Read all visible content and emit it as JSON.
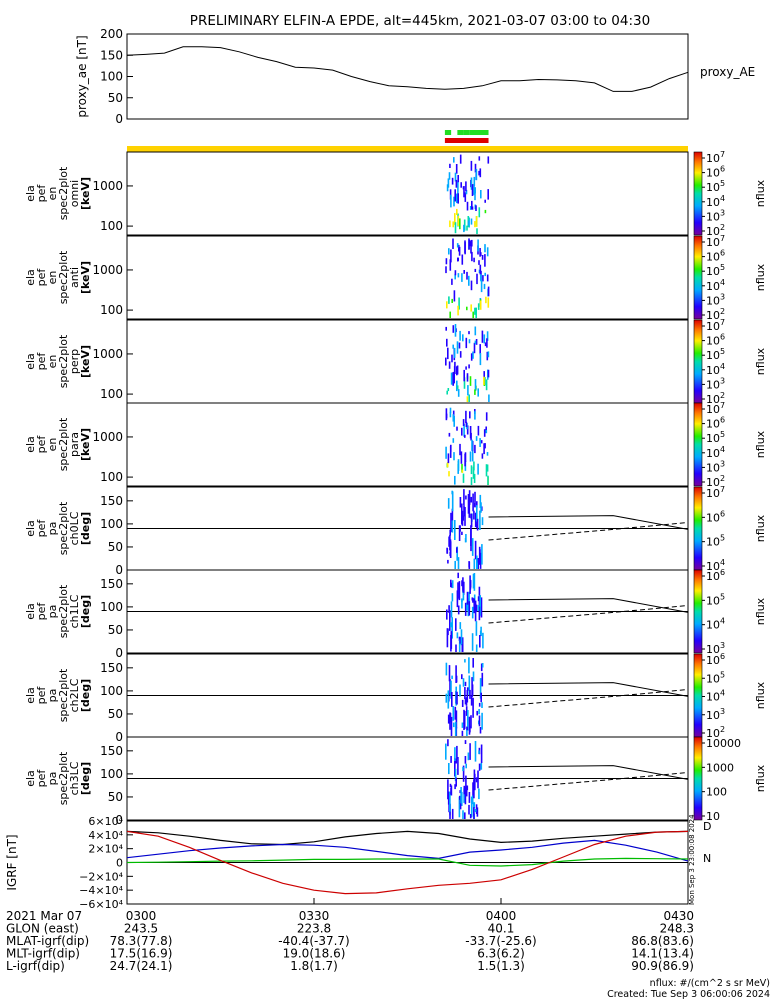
{
  "title": "PRELIMINARY ELFIN-A EPDE, alt=445km, 2021-03-07 03:00 to 04:30",
  "colors": {
    "frame": "#000000",
    "orbit_bar": "#ffd200",
    "science_green": "#22dd22",
    "science_red": "#dd0000",
    "bx": "#0000cc",
    "by": "#00bb00",
    "bz": "#cc0000",
    "btot": "#000000"
  },
  "chart_data": [
    {
      "type": "line",
      "panel": "proxy_ae",
      "ylabel": "proxy_ae [nT]",
      "series_label": "proxy_AE",
      "ylim": [
        0,
        200
      ],
      "yticks": [
        "200",
        "150",
        "100",
        "50",
        "0"
      ],
      "x": [
        "03:00",
        "03:03",
        "03:06",
        "03:09",
        "03:12",
        "03:15",
        "03:18",
        "03:21",
        "03:24",
        "03:27",
        "03:30",
        "03:33",
        "03:36",
        "03:39",
        "03:42",
        "03:45",
        "03:48",
        "03:51",
        "03:54",
        "03:57",
        "04:00",
        "04:03",
        "04:06",
        "04:09",
        "04:12",
        "04:15",
        "04:18",
        "04:21",
        "04:24",
        "04:27",
        "04:30"
      ],
      "values": [
        150,
        152,
        155,
        170,
        170,
        168,
        158,
        145,
        135,
        122,
        120,
        115,
        100,
        88,
        78,
        76,
        72,
        70,
        72,
        78,
        90,
        90,
        93,
        92,
        90,
        85,
        65,
        65,
        75,
        95,
        110
      ]
    },
    {
      "type": "bar",
      "panel": "science_zone_bars",
      "segments": [
        {
          "color": "green",
          "start": "03:51",
          "end": "03:52"
        },
        {
          "color": "green",
          "start": "03:53",
          "end": "03:54"
        },
        {
          "color": "green",
          "start": "03:54",
          "end": "03:55"
        },
        {
          "color": "green",
          "start": "03:55",
          "end": "03:58"
        },
        {
          "color": "red",
          "start": "03:51",
          "end": "03:58"
        }
      ]
    },
    {
      "type": "heatmap",
      "panel": "ela pef en spec2plot omni",
      "ylabel_lines": [
        "ela",
        "pef",
        "en",
        "spec2plot",
        "omni",
        "[keV]"
      ],
      "ylog": true,
      "yticks": [
        "1000",
        "100"
      ],
      "zlabel": "nflux",
      "ztick_exponents": [
        "7",
        "6",
        "5",
        "4",
        "3",
        "2"
      ],
      "active_interval": [
        "03:51",
        "03:58"
      ]
    },
    {
      "type": "heatmap",
      "panel": "ela pef en spec2plot anti",
      "ylabel_lines": [
        "ela",
        "pef",
        "en",
        "spec2plot",
        "anti",
        "[keV]"
      ],
      "ylog": true,
      "yticks": [
        "1000",
        "100"
      ],
      "zlabel": "nflux",
      "ztick_exponents": [
        "7",
        "6",
        "5",
        "4",
        "3",
        "2"
      ],
      "active_interval": [
        "03:51",
        "03:58"
      ]
    },
    {
      "type": "heatmap",
      "panel": "ela pef en spec2plot perp",
      "ylabel_lines": [
        "ela",
        "pef",
        "en",
        "spec2plot",
        "perp",
        "[keV]"
      ],
      "ylog": true,
      "yticks": [
        "1000",
        "100"
      ],
      "zlabel": "nflux",
      "ztick_exponents": [
        "7",
        "6",
        "5",
        "4",
        "3",
        "2"
      ],
      "active_interval": [
        "03:51",
        "03:58"
      ]
    },
    {
      "type": "heatmap",
      "panel": "ela pef en spec2plot para",
      "ylabel_lines": [
        "ela",
        "pef",
        "en",
        "spec2plot",
        "para",
        "[keV]"
      ],
      "ylog": true,
      "yticks": [
        "1000",
        "100"
      ],
      "zlabel": "nflux",
      "ztick_exponents": [
        "7",
        "6",
        "5",
        "4",
        "3",
        "2"
      ],
      "active_interval": [
        "03:51",
        "03:58"
      ]
    },
    {
      "type": "heatmap",
      "panel": "ela pef pa spec2plot ch0LC",
      "ylabel_lines": [
        "ela",
        "pef",
        "pa",
        "spec2plot",
        "ch0LC",
        "[deg]"
      ],
      "ylim": [
        0,
        180
      ],
      "yticks": [
        "150",
        "100",
        "50",
        "0"
      ],
      "zlabel": "nflux",
      "ztick_exponents": [
        "7",
        "6",
        "5",
        "4"
      ],
      "active_interval": [
        "03:51",
        "03:57"
      ]
    },
    {
      "type": "heatmap",
      "panel": "ela pef pa spec2plot ch1LC",
      "ylabel_lines": [
        "ela",
        "pef",
        "pa",
        "spec2plot",
        "ch1LC",
        "[deg]"
      ],
      "ylim": [
        0,
        180
      ],
      "yticks": [
        "150",
        "100",
        "50",
        "0"
      ],
      "zlabel": "nflux",
      "ztick_exponents": [
        "6",
        "5",
        "4",
        "3"
      ],
      "active_interval": [
        "03:51",
        "03:57"
      ]
    },
    {
      "type": "heatmap",
      "panel": "ela pef pa spec2plot ch2LC",
      "ylabel_lines": [
        "ela",
        "pef",
        "pa",
        "spec2plot",
        "ch2LC",
        "[deg]"
      ],
      "ylim": [
        0,
        180
      ],
      "yticks": [
        "150",
        "100",
        "50",
        "0"
      ],
      "zlabel": "nflux",
      "ztick_exponents": [
        "6",
        "5",
        "4",
        "3",
        "2"
      ],
      "active_interval": [
        "03:51",
        "03:57"
      ]
    },
    {
      "type": "heatmap",
      "panel": "ela pef pa spec2plot ch3LC",
      "ylabel_lines": [
        "ela",
        "pef",
        "pa",
        "spec2plot",
        "ch3LC",
        "[deg]"
      ],
      "ylim": [
        0,
        180
      ],
      "yticks": [
        "150",
        "100",
        "50",
        "0"
      ],
      "zlabel": "nflux",
      "ztick_labels": [
        "10000",
        "1000",
        "100",
        "10"
      ],
      "active_interval": [
        "03:51",
        "03:57"
      ]
    },
    {
      "type": "line",
      "panel": "IGRF",
      "ylabel": "IGRF [nT]",
      "ylim": [
        -60000,
        60000
      ],
      "yticks": [
        "6×10⁴",
        "4×10⁴",
        "2×10⁴",
        "0",
        "−2×10⁴",
        "−4×10⁴",
        "−6×10⁴"
      ],
      "side_labels": [
        "D",
        "N"
      ],
      "x": [
        "03:00",
        "03:05",
        "03:10",
        "03:15",
        "03:20",
        "03:25",
        "03:30",
        "03:35",
        "03:40",
        "03:45",
        "03:50",
        "03:55",
        "04:00",
        "04:05",
        "04:10",
        "04:15",
        "04:20",
        "04:25",
        "04:30"
      ],
      "series": [
        {
          "name": "|B|",
          "values": [
            45000,
            43000,
            38000,
            32000,
            27000,
            26000,
            30000,
            37000,
            42000,
            45000,
            42000,
            34000,
            29000,
            31000,
            35000,
            38000,
            41000,
            44000,
            45000
          ]
        },
        {
          "name": "Bx",
          "values": [
            7000,
            12000,
            17000,
            21000,
            24000,
            26000,
            25000,
            22000,
            16000,
            10000,
            6000,
            15000,
            18000,
            22000,
            28000,
            32000,
            25000,
            15000,
            2000
          ]
        },
        {
          "name": "By",
          "values": [
            0,
            500,
            1200,
            2000,
            2500,
            3500,
            4500,
            4500,
            5000,
            5000,
            5000,
            -4000,
            -5000,
            -3000,
            2000,
            5000,
            6000,
            5500,
            5000
          ]
        },
        {
          "name": "Bz",
          "values": [
            45000,
            38000,
            22000,
            3000,
            -15000,
            -30000,
            -40000,
            -45000,
            -44000,
            -38000,
            -33000,
            -30000,
            -25000,
            -10000,
            8000,
            26000,
            38000,
            44000,
            45000
          ]
        }
      ]
    }
  ],
  "side_vertical_text": "Mon Sep  3 23:00:08 2024",
  "axis_footer": {
    "rows": [
      {
        "label": "2021 Mar 07",
        "values": [
          "0300",
          "0330",
          "0400",
          "0430"
        ]
      },
      {
        "label": "GLON (east)",
        "values": [
          "243.5",
          "223.8",
          "40.1",
          "248.3"
        ]
      },
      {
        "label": "MLAT-igrf(dip)",
        "values": [
          "78.3(77.8)",
          "-40.4(-37.7)",
          "-33.7(-25.6)",
          "86.8(83.6)"
        ]
      },
      {
        "label": "MLT-igrf(dip)",
        "values": [
          "17.5(16.9)",
          "19.0(18.6)",
          "6.3(6.2)",
          "14.1(13.4)"
        ]
      },
      {
        "label": "L-igrf(dip)",
        "values": [
          "24.7(24.1)",
          "1.8(1.7)",
          "1.5(1.3)",
          "90.9(86.9)"
        ]
      }
    ]
  },
  "footnote": {
    "units": "nflux: #/(cm^2 s sr MeV)",
    "created": "Created: Tue Sep  3 06:00:06 2024"
  }
}
